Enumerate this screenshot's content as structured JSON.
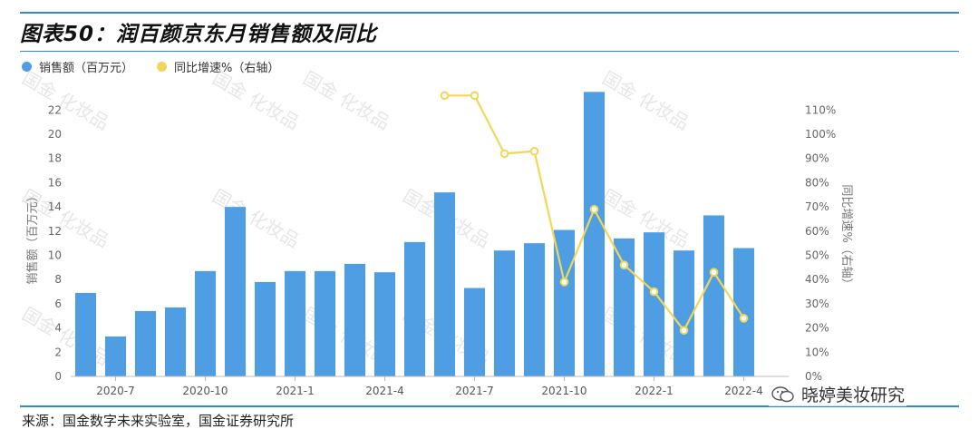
{
  "title": "图表50：润百颜京东月销售额及同比",
  "source": "来源：国金数字未来实验室，国金证券研究所",
  "watermark": "国金 化妆品",
  "brand": {
    "text": "晓婷美妆研究",
    "icon": "wechat-icon"
  },
  "colors": {
    "bar": "#4f9ee3",
    "line": "#f2d65a",
    "rule": "#2e8bd2"
  },
  "chart_data": {
    "type": "bar",
    "legend": [
      "销售额（百万元）",
      "同比增速%（右轴）"
    ],
    "ylabel": "销售额（百万元）",
    "y2label": "同比增速%（右轴）",
    "ylim": [
      0,
      23
    ],
    "y_ticks": [
      "0",
      "2",
      "4",
      "6",
      "8",
      "10",
      "12",
      "14",
      "16",
      "18",
      "20",
      "22"
    ],
    "y2lim": [
      0,
      115
    ],
    "y2_ticks": [
      "0%",
      "10%",
      "20%",
      "30%",
      "40%",
      "50%",
      "60%",
      "70%",
      "80%",
      "90%",
      "100%",
      "110%"
    ],
    "x_tick_labels": [
      "2020-7",
      "2020-10",
      "2021-1",
      "2021-4",
      "2021-7",
      "2021-10",
      "2022-1",
      "2022-4"
    ],
    "categories": [
      "2020-6",
      "2020-7",
      "2020-8",
      "2020-9",
      "2020-10",
      "2020-11",
      "2020-12",
      "2021-1",
      "2021-2",
      "2021-3",
      "2021-4",
      "2021-5",
      "2021-6",
      "2021-7",
      "2021-8",
      "2021-9",
      "2021-10",
      "2021-11",
      "2021-12",
      "2022-1",
      "2022-2",
      "2022-3",
      "2022-4",
      "2022-5"
    ],
    "series": [
      {
        "name": "销售额（百万元）",
        "type": "bar",
        "axis": "left",
        "values": [
          6.9,
          3.3,
          5.4,
          5.7,
          8.7,
          14.0,
          7.8,
          8.7,
          8.7,
          9.3,
          8.6,
          11.1,
          15.2,
          7.3,
          10.4,
          11.0,
          12.1,
          23.5,
          11.4,
          11.9,
          10.4,
          13.3,
          10.6,
          null
        ]
      },
      {
        "name": "同比增速%（右轴）",
        "type": "line",
        "axis": "right",
        "values": [
          null,
          null,
          null,
          null,
          null,
          null,
          null,
          null,
          null,
          null,
          null,
          null,
          116,
          116,
          92,
          93,
          39,
          69,
          46,
          35,
          19,
          43,
          24,
          null
        ]
      }
    ]
  }
}
